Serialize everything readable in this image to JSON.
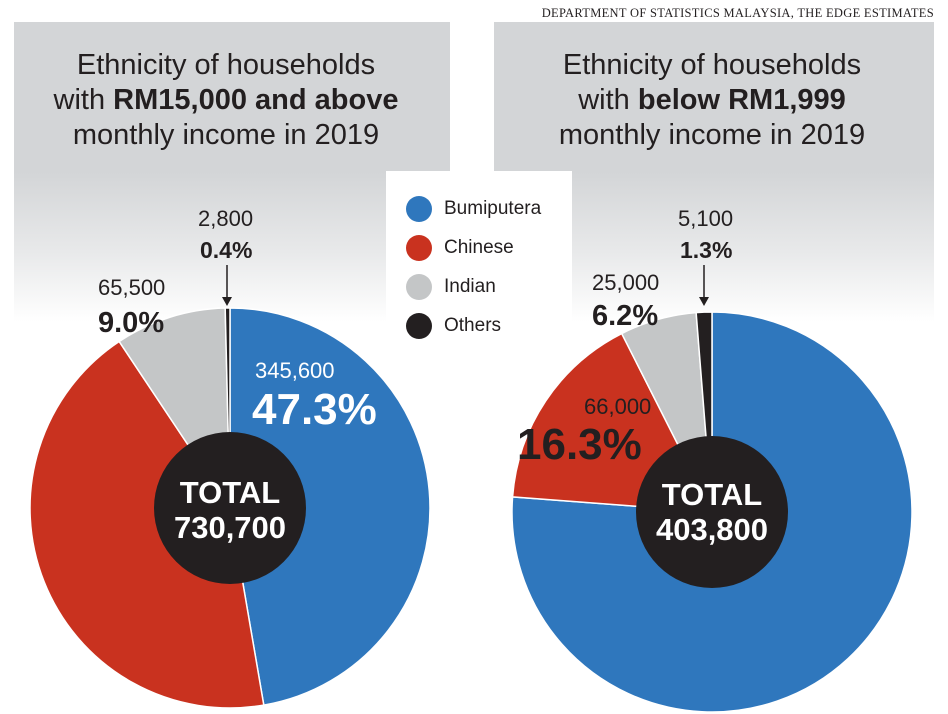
{
  "source": "DEPARTMENT OF STATISTICS MALAYSIA, THE EDGE ESTIMATES",
  "colors": {
    "Bumiputera": "#2f77bd",
    "Chinese": "#c9321f",
    "Indian": "#c4c6c7",
    "Others": "#231f20"
  },
  "legend": [
    {
      "label": "Bumiputera",
      "color": "#2f77bd"
    },
    {
      "label": "Chinese",
      "color": "#c9321f"
    },
    {
      "label": "Indian",
      "color": "#c4c6c7"
    },
    {
      "label": "Others",
      "color": "#231f20"
    }
  ],
  "chart_data": [
    {
      "type": "pie",
      "title_pre": "Ethnicity of households",
      "title_mid_plain": "with ",
      "title_mid_bold": "RM15,000 and above",
      "title_post": "monthly income in 2019",
      "total_label": "TOTAL",
      "total_value": "730,700",
      "slices": [
        {
          "category": "Bumiputera",
          "value": 345600,
          "value_label": "345,600",
          "percent_label": "47.3%"
        },
        {
          "category": "Chinese",
          "value": 316800,
          "value_label": "",
          "percent_label": ""
        },
        {
          "category": "Indian",
          "value": 65500,
          "value_label": "65,500",
          "percent_label": "9.0%"
        },
        {
          "category": "Others",
          "value": 2800,
          "value_label": "2,800",
          "percent_label": "0.4%"
        }
      ]
    },
    {
      "type": "pie",
      "title_pre": "Ethnicity of households",
      "title_mid_plain": "with ",
      "title_mid_bold": "below RM1,999",
      "title_post": "monthly income in 2019",
      "total_label": "TOTAL",
      "total_value": "403,800",
      "slices": [
        {
          "category": "Bumiputera",
          "value": 307700,
          "value_label": "",
          "percent_label": ""
        },
        {
          "category": "Chinese",
          "value": 66000,
          "value_label": "66,000",
          "percent_label": "16.3%"
        },
        {
          "category": "Indian",
          "value": 25000,
          "value_label": "25,000",
          "percent_label": "6.2%"
        },
        {
          "category": "Others",
          "value": 5100,
          "value_label": "5,100",
          "percent_label": "1.3%"
        }
      ]
    }
  ]
}
